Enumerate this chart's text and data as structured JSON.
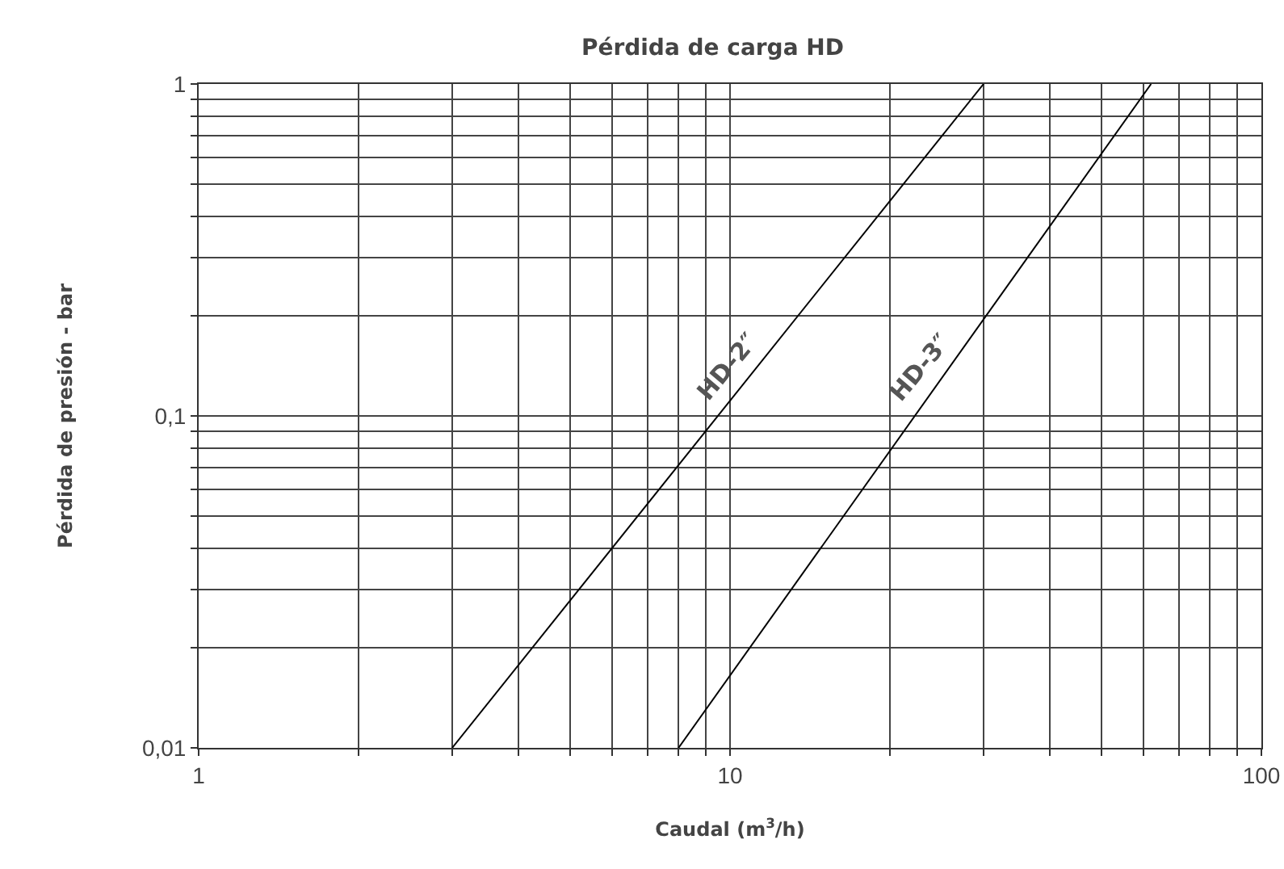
{
  "chart_data": {
    "type": "line",
    "title": "Pérdida de carga HD",
    "xlabel": "Caudal (m$^{3}$/h)",
    "ylabel": "Pérdida de presión - bar",
    "log": "xy",
    "grid": true,
    "legend": false,
    "marker": "none",
    "line_style": "solid",
    "xlim": [
      1,
      100
    ],
    "xticks": [
      1,
      {
        "value": 2,
        "label": null
      },
      {
        "value": 3,
        "label": null
      },
      {
        "value": 4,
        "label": null
      },
      {
        "value": 5,
        "label": null
      },
      {
        "value": 6,
        "label": null
      },
      {
        "value": 7,
        "label": null
      },
      {
        "value": 8,
        "label": null
      },
      {
        "value": 9,
        "label": null
      },
      10,
      {
        "value": 20,
        "label": null
      },
      {
        "value": 30,
        "label": null
      },
      {
        "value": 40,
        "label": null
      },
      {
        "value": 50,
        "label": null
      },
      {
        "value": 60,
        "label": null
      },
      {
        "value": 70,
        "label": null
      },
      {
        "value": 80,
        "label": null
      },
      {
        "value": 90,
        "label": null
      },
      100
    ],
    "ylim": [
      0.01,
      1
    ],
    "yticks": [
      {
        "value": 0.01,
        "label": "0,01"
      },
      {
        "value": 0.02,
        "label": null
      },
      {
        "value": 0.03,
        "label": null
      },
      {
        "value": 0.04,
        "label": null
      },
      {
        "value": 0.05,
        "label": null
      },
      {
        "value": 0.06,
        "label": null
      },
      {
        "value": 0.07,
        "label": null
      },
      {
        "value": 0.08,
        "label": null
      },
      {
        "value": 0.09,
        "label": null
      },
      {
        "value": 0.1,
        "label": "0,1"
      },
      {
        "value": 0.2,
        "label": null
      },
      {
        "value": 0.3,
        "label": null
      },
      {
        "value": 0.4,
        "label": null
      },
      {
        "value": 0.5,
        "label": null
      },
      {
        "value": 0.6,
        "label": null
      },
      {
        "value": 0.7,
        "label": null
      },
      {
        "value": 0.8,
        "label": null
      },
      {
        "value": 0.9,
        "label": null
      },
      1
    ],
    "series": [
      {
        "name": "HD-2″",
        "color": "#000000",
        "x": [
          3,
          30
        ],
        "values": [
          0.01,
          1
        ]
      },
      {
        "name": "HD-3″",
        "color": "#000000",
        "x": [
          8,
          62
        ],
        "values": [
          0.01,
          1
        ]
      }
    ]
  }
}
